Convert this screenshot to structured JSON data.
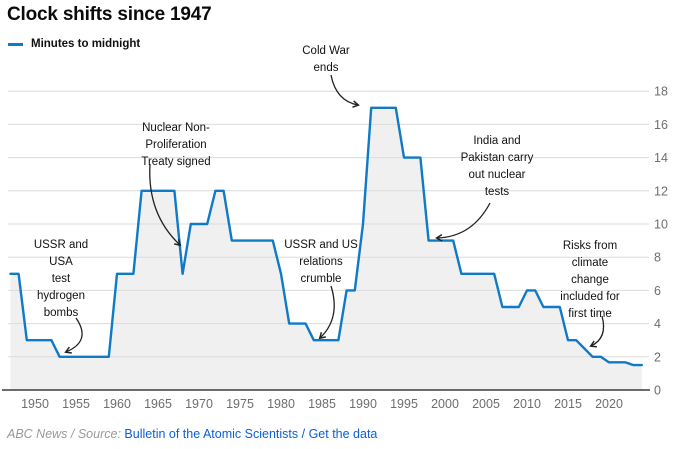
{
  "title": "Clock shifts since 1947",
  "legend": {
    "label": "Minutes to midnight",
    "color": "#0f7ac5"
  },
  "footer": {
    "attribution": "ABC News / Source:",
    "source_link": "Bulletin of the Atomic Scientists",
    "separator": "/",
    "data_link": "Get the data"
  },
  "chart_data": {
    "type": "line",
    "title": "Clock shifts since 1947",
    "series": [
      {
        "name": "Minutes to midnight",
        "x": [
          1947,
          1948,
          1949,
          1952,
          1953,
          1959,
          1960,
          1962,
          1963,
          1967,
          1968,
          1969,
          1971,
          1972,
          1973,
          1974,
          1979,
          1980,
          1981,
          1983,
          1984,
          1987,
          1988,
          1989,
          1990,
          1991,
          1994,
          1995,
          1997,
          1998,
          2001,
          2002,
          2006,
          2007,
          2009,
          2010,
          2011,
          2012,
          2014,
          2015,
          2016,
          2017,
          2018,
          2019,
          2020,
          2022,
          2023,
          2024
        ],
        "values": [
          7,
          7,
          3,
          3,
          2,
          2,
          7,
          7,
          12,
          12,
          7,
          10,
          10,
          12,
          12,
          9,
          9,
          7,
          4,
          4,
          3,
          3,
          6,
          6,
          10,
          17,
          17,
          14,
          14,
          9,
          9,
          7,
          7,
          5,
          5,
          6,
          6,
          5,
          5,
          3,
          3,
          2.5,
          2,
          2,
          1.667,
          1.667,
          1.5,
          1.5
        ]
      }
    ],
    "xlabel": "",
    "ylabel": "",
    "xlim": [
      1947,
      2024
    ],
    "ylim": [
      0,
      18
    ],
    "x_ticks": [
      1950,
      1955,
      1960,
      1965,
      1970,
      1975,
      1980,
      1985,
      1990,
      1995,
      2000,
      2005,
      2010,
      2015,
      2020
    ],
    "y_ticks": [
      0,
      2,
      4,
      6,
      8,
      10,
      12,
      14,
      16,
      18
    ],
    "grid": true,
    "legend_position": "top-left",
    "line_color": "#0f7ac5",
    "area_fill_color": "#f0f0f0",
    "annotations": [
      {
        "id": "hydrogen",
        "text": "USSR and\nUSA\ntest\nhydrogen\nbombs",
        "target_year": 1954,
        "target_value": 2
      },
      {
        "id": "npt",
        "text": "Nuclear Non-\nProliferation\nTreaty signed",
        "target_year": 1968,
        "target_value": 7
      },
      {
        "id": "coldwar",
        "text": "Cold War\nends",
        "target_year": 1991,
        "target_value": 17
      },
      {
        "id": "india",
        "text": "India and\nPakistan carry\nout nuclear\ntests",
        "target_year": 1998,
        "target_value": 9
      },
      {
        "id": "ussr-us",
        "text": "USSR and US\nrelations\ncrumble",
        "target_year": 1984,
        "target_value": 3
      },
      {
        "id": "climate",
        "text": "Risks from\nclimate\nchange\nincluded for\nfirst time",
        "target_year": 2017,
        "target_value": 2.5
      }
    ]
  }
}
